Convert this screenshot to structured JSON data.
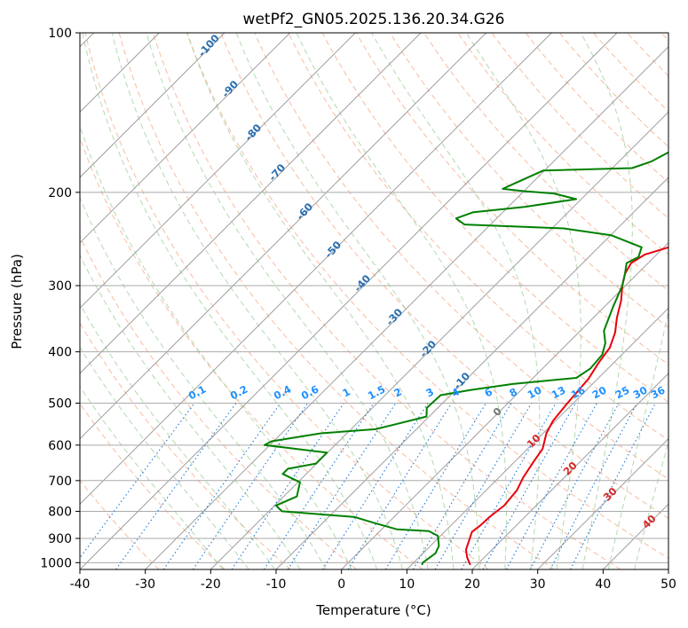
{
  "chart_data": {
    "type": "line",
    "title": "wetPf2_GN05.2025.136.20.34.G26",
    "xlabel": "Temperature (°C)",
    "ylabel": "Pressure (hPa)",
    "xlim": [
      -40,
      50
    ],
    "ylim": [
      1030,
      100
    ],
    "y_scale": "log",
    "grid": true,
    "x_ticks": [
      "-40",
      "-30",
      "-20",
      "-10",
      "0",
      "10",
      "20",
      "30",
      "40",
      "50"
    ],
    "y_ticks": [
      "100",
      "200",
      "300",
      "400",
      "500",
      "600",
      "700",
      "800",
      "900",
      "1000"
    ],
    "series": [
      {
        "name": "",
        "color": "#e8000b",
        "points": [
          [
            12.1,
            100
          ],
          [
            12.1,
            120
          ],
          [
            10.8,
            128
          ],
          [
            9.9,
            137
          ],
          [
            10.4,
            155
          ],
          [
            10.9,
            172
          ],
          [
            10.8,
            188
          ],
          [
            9.9,
            200
          ],
          [
            8.2,
            218
          ],
          [
            5.5,
            236
          ],
          [
            1.7,
            251
          ],
          [
            -1.8,
            262
          ],
          [
            -2.6,
            272
          ],
          [
            -1.9,
            285
          ],
          [
            -0.5,
            300
          ],
          [
            1.6,
            320
          ],
          [
            3.6,
            345
          ],
          [
            5.6,
            368
          ],
          [
            7.1,
            393
          ],
          [
            7.7,
            420
          ],
          [
            8.6,
            450
          ],
          [
            9.1,
            500
          ],
          [
            9.6,
            540
          ],
          [
            10.5,
            570
          ],
          [
            12.3,
            610
          ],
          [
            12.8,
            640
          ],
          [
            13.7,
            690
          ],
          [
            14.7,
            730
          ],
          [
            15.1,
            780
          ],
          [
            14.6,
            820
          ],
          [
            14.5,
            850
          ],
          [
            14.2,
            875
          ],
          [
            15.0,
            905
          ],
          [
            16.0,
            945
          ],
          [
            17.4,
            978
          ],
          [
            19.0,
            1010
          ]
        ]
      },
      {
        "name": "",
        "color": "#008000",
        "points": [
          [
            -1.5,
            100
          ],
          [
            -4.5,
            112
          ],
          [
            -6.6,
            122
          ],
          [
            -8.5,
            133
          ],
          [
            -9.8,
            146
          ],
          [
            -11.6,
            155
          ],
          [
            -12.7,
            162
          ],
          [
            -15.1,
            175
          ],
          [
            -17.0,
            180
          ],
          [
            -30.2,
            182
          ],
          [
            -32.5,
            192
          ],
          [
            -33.6,
            197
          ],
          [
            -30.0,
            199
          ],
          [
            -25.1,
            201
          ],
          [
            -20.8,
            206
          ],
          [
            -27.5,
            213
          ],
          [
            -34.5,
            218
          ],
          [
            -36.2,
            224
          ],
          [
            -34.0,
            230
          ],
          [
            -18.2,
            234
          ],
          [
            -9.9,
            241
          ],
          [
            -3.4,
            254
          ],
          [
            -2.4,
            265
          ],
          [
            -3.3,
            272
          ],
          [
            -1.9,
            285
          ],
          [
            -0.5,
            300
          ],
          [
            1.4,
            330
          ],
          [
            3.6,
            365
          ],
          [
            5.7,
            385
          ],
          [
            7.0,
            405
          ],
          [
            7.3,
            430
          ],
          [
            6.6,
            448
          ],
          [
            -2.2,
            460
          ],
          [
            -7.7,
            472
          ],
          [
            -11.5,
            483
          ],
          [
            -11.7,
            510
          ],
          [
            -10.4,
            530
          ],
          [
            -14.3,
            550
          ],
          [
            -16.3,
            560
          ],
          [
            -24.0,
            570
          ],
          [
            -30.3,
            590
          ],
          [
            -30.8,
            600
          ],
          [
            -20.1,
            620
          ],
          [
            -20.1,
            650
          ],
          [
            -23.6,
            665
          ],
          [
            -23.6,
            680
          ],
          [
            -19.7,
            705
          ],
          [
            -18.0,
            750
          ],
          [
            -19.8,
            780
          ],
          [
            -18.0,
            800
          ],
          [
            -6.0,
            820
          ],
          [
            -2.4,
            840
          ],
          [
            2.3,
            865
          ],
          [
            7.5,
            872
          ],
          [
            9.6,
            890
          ],
          [
            11.3,
            930
          ],
          [
            11.9,
            960
          ],
          [
            11.4,
            1000
          ],
          [
            11.6,
            1010
          ]
        ]
      }
    ],
    "mixing_ratio_labels": [
      "0.1",
      "0.2",
      "0.4",
      "0.6",
      "1",
      "1.5",
      "2",
      "3",
      "4",
      "6",
      "8",
      "10",
      "13",
      "16",
      "20",
      "25",
      "30",
      "36"
    ],
    "dry_adiabat_labels": [
      "-100",
      "-90",
      "-80",
      "-70",
      "-60",
      "-50",
      "-40",
      "-30",
      "-20",
      "-10"
    ],
    "moist_adiabat_labels": [
      "0",
      "10",
      "20",
      "30",
      "40"
    ]
  },
  "colors": {
    "temperature": "#e8000b",
    "dewpoint": "#008000",
    "dry_adiabat_label": "#2a6fb0",
    "moist_adiabat_label": "#d62728",
    "mixing_ratio_label": "#1e90ff",
    "zero_label": "#777777"
  }
}
